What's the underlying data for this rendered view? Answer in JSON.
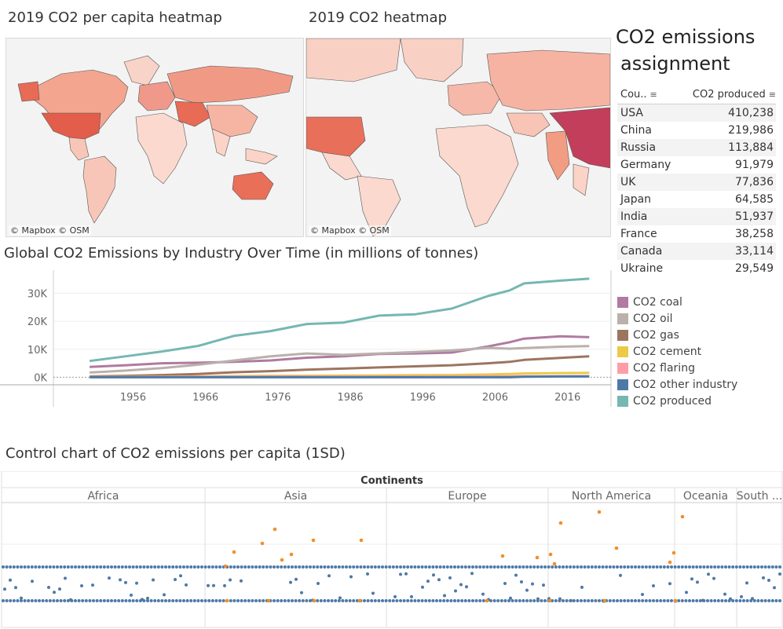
{
  "maps": {
    "per_capita": {
      "title": "2019 CO2 per capita heatmap",
      "credit": "© Mapbox © OSM"
    },
    "total": {
      "title": "2019 CO2 heatmap",
      "credit": "© Mapbox © OSM"
    }
  },
  "dashboard": {
    "title_line1": "CO2 emissions",
    "title_line2": "assignment"
  },
  "table": {
    "col_country": "Cou..",
    "col_value": "CO2 produced",
    "rows": [
      {
        "country": "USA",
        "value": "410,238"
      },
      {
        "country": "China",
        "value": "219,986"
      },
      {
        "country": "Russia",
        "value": "113,884"
      },
      {
        "country": "Germany",
        "value": "91,979"
      },
      {
        "country": "UK",
        "value": "77,836"
      },
      {
        "country": "Japan",
        "value": "64,585"
      },
      {
        "country": "India",
        "value": "51,937"
      },
      {
        "country": "France",
        "value": "38,258"
      },
      {
        "country": "Canada",
        "value": "33,114"
      },
      {
        "country": "Ukraine",
        "value": "29,549"
      }
    ]
  },
  "industry_chart": {
    "title": "Global CO2 Emissions by Industry Over Time (in millions of tonnes)",
    "legend": [
      {
        "name": "CO2 coal",
        "color": "#b07aa1"
      },
      {
        "name": "CO2 oil",
        "color": "#bab0ac"
      },
      {
        "name": "CO2 gas",
        "color": "#9c755f"
      },
      {
        "name": "CO2 cement",
        "color": "#edc948"
      },
      {
        "name": "CO2 flaring",
        "color": "#ff9da7"
      },
      {
        "name": "CO2 other industry",
        "color": "#4e79a7"
      },
      {
        "name": "CO2 produced",
        "color": "#76b7b2"
      }
    ]
  },
  "chart_data": {
    "type": "line",
    "x": [
      1950,
      1955,
      1960,
      1965,
      1970,
      1975,
      1980,
      1985,
      1990,
      1995,
      2000,
      2005,
      2008,
      2010,
      2015,
      2019
    ],
    "xticks": [
      "1956",
      "1966",
      "1976",
      "1986",
      "1996",
      "2006",
      "2016"
    ],
    "xtick_values": [
      1956,
      1966,
      1976,
      1986,
      1996,
      2006,
      2016
    ],
    "yticks": [
      "0K",
      "10K",
      "20K",
      "30K"
    ],
    "ytick_values": [
      0,
      10000,
      20000,
      30000
    ],
    "ylim": [
      -1000,
      36000
    ],
    "xlim": [
      1945,
      2022
    ],
    "series": [
      {
        "name": "CO2 coal",
        "values": [
          3700,
          4300,
          5000,
          5200,
          5500,
          6000,
          7000,
          7500,
          8300,
          8500,
          8800,
          11000,
          12500,
          13800,
          14600,
          14300
        ]
      },
      {
        "name": "CO2 oil",
        "values": [
          1700,
          2400,
          3300,
          4500,
          6000,
          7500,
          8500,
          8000,
          8500,
          9000,
          9600,
          10500,
          10200,
          10400,
          10900,
          11100
        ]
      },
      {
        "name": "CO2 gas",
        "values": [
          300,
          500,
          800,
          1200,
          1800,
          2200,
          2700,
          3100,
          3500,
          3900,
          4300,
          5000,
          5500,
          6200,
          6900,
          7500
        ]
      },
      {
        "name": "CO2 cement",
        "values": [
          100,
          150,
          200,
          300,
          400,
          500,
          550,
          600,
          650,
          750,
          800,
          1000,
          1200,
          1350,
          1500,
          1550
        ]
      },
      {
        "name": "CO2 flaring",
        "values": [
          50,
          70,
          100,
          150,
          200,
          250,
          200,
          200,
          220,
          230,
          250,
          280,
          300,
          320,
          350,
          380
        ]
      },
      {
        "name": "CO2 other industry",
        "values": [
          0,
          0,
          0,
          0,
          0,
          0,
          0,
          0,
          0,
          0,
          0,
          0,
          0,
          200,
          280,
          300
        ]
      },
      {
        "name": "CO2 produced",
        "values": [
          5800,
          7500,
          9200,
          11200,
          14800,
          16500,
          19000,
          19500,
          22000,
          22500,
          24500,
          29000,
          31000,
          33500,
          34500,
          35200
        ]
      }
    ]
  },
  "control_chart": {
    "title": "Control chart of CO2 emissions per capita (1SD)",
    "header": "Continents",
    "continents": [
      "Africa",
      "Asia",
      "Europe",
      "North America",
      "Oceania",
      "South ..."
    ],
    "normal_color": "#4e79a7",
    "outlier_color": "#f28e2b"
  }
}
